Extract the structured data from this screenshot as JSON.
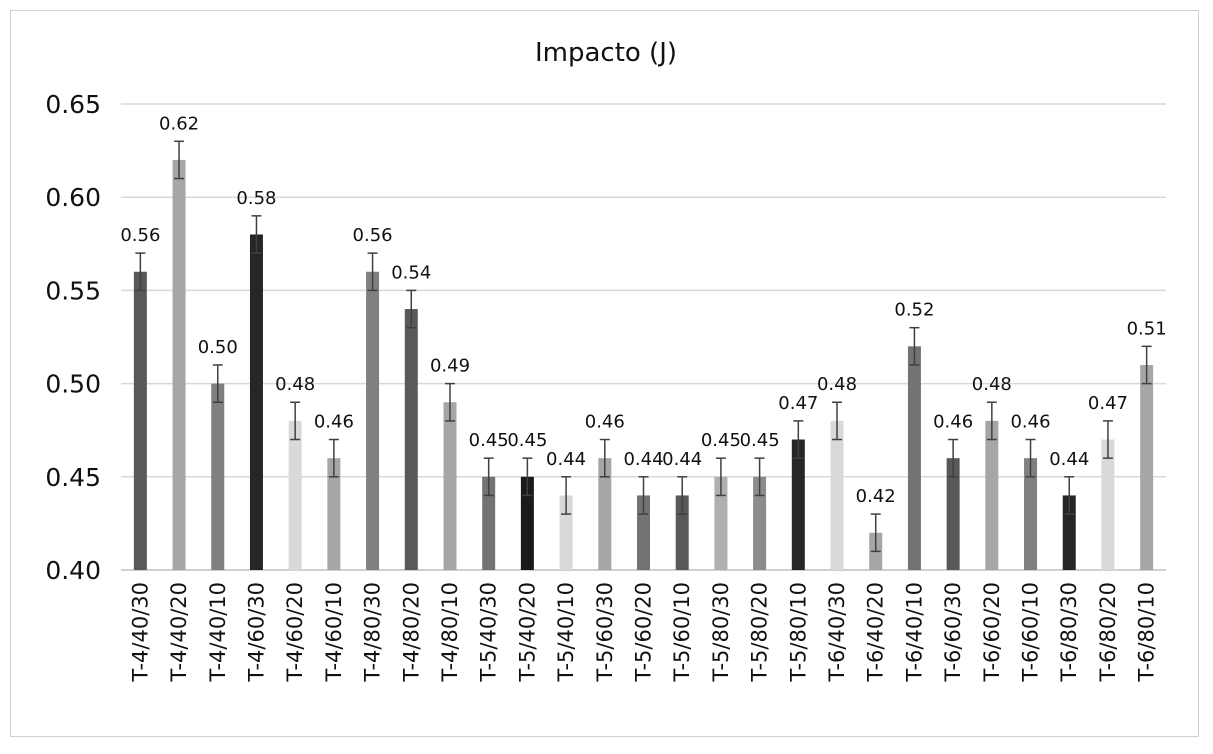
{
  "chart_data": {
    "type": "bar",
    "title": "Impacto (J)",
    "xlabel": "",
    "ylabel": "",
    "ylim": [
      0.4,
      0.65
    ],
    "yticks": [
      "0.40",
      "0.45",
      "0.50",
      "0.55",
      "0.60",
      "0.65"
    ],
    "grid": true,
    "categories": [
      "T-4/40/30",
      "T-4/40/20",
      "T-4/40/10",
      "T-4/60/30",
      "T-4/60/20",
      "T-4/60/10",
      "T-4/80/30",
      "T-4/80/20",
      "T-4/80/10",
      "T-5/40/30",
      "T-5/40/20",
      "T-5/40/10",
      "T-5/60/30",
      "T-5/60/20",
      "T-5/60/10",
      "T-5/80/30",
      "T-5/80/20",
      "T-5/80/10",
      "T-6/40/30",
      "T-6/40/20",
      "T-6/40/10",
      "T-6/60/30",
      "T-6/60/20",
      "T-6/60/10",
      "T-6/80/30",
      "T-6/80/20",
      "T-6/80/10"
    ],
    "values": [
      0.56,
      0.62,
      0.5,
      0.58,
      0.48,
      0.46,
      0.56,
      0.54,
      0.49,
      0.45,
      0.45,
      0.44,
      0.46,
      0.44,
      0.44,
      0.45,
      0.45,
      0.47,
      0.48,
      0.42,
      0.52,
      0.46,
      0.48,
      0.46,
      0.44,
      0.47,
      0.51
    ],
    "data_labels": [
      "0.56",
      "0.62",
      "0.50",
      "0.58",
      "0.48",
      "0.46",
      "0.56",
      "0.54",
      "0.49",
      "0.45",
      "0.45",
      "0.44",
      "0.46",
      "0.44",
      "0.44",
      "0.45",
      "0.45",
      "0.47",
      "0.48",
      "0.42",
      "0.52",
      "0.46",
      "0.48",
      "0.46",
      "0.44",
      "0.47",
      "0.51"
    ],
    "error": [
      0.01,
      0.01,
      0.01,
      0.01,
      0.01,
      0.01,
      0.01,
      0.01,
      0.01,
      0.01,
      0.01,
      0.01,
      0.01,
      0.01,
      0.01,
      0.01,
      0.01,
      0.01,
      0.01,
      0.01,
      0.01,
      0.01,
      0.01,
      0.01,
      0.01,
      0.01,
      0.01
    ],
    "colors": [
      "#595959",
      "#a6a6a6",
      "#808080",
      "#262626",
      "#d9d9d9",
      "#a6a6a6",
      "#808080",
      "#595959",
      "#a6a6a6",
      "#737373",
      "#1a1a1a",
      "#d9d9d9",
      "#a6a6a6",
      "#737373",
      "#595959",
      "#b0b0b0",
      "#8c8c8c",
      "#262626",
      "#d9d9d9",
      "#a6a6a6",
      "#737373",
      "#595959",
      "#a6a6a6",
      "#808080",
      "#262626",
      "#d9d9d9",
      "#a6a6a6"
    ]
  }
}
